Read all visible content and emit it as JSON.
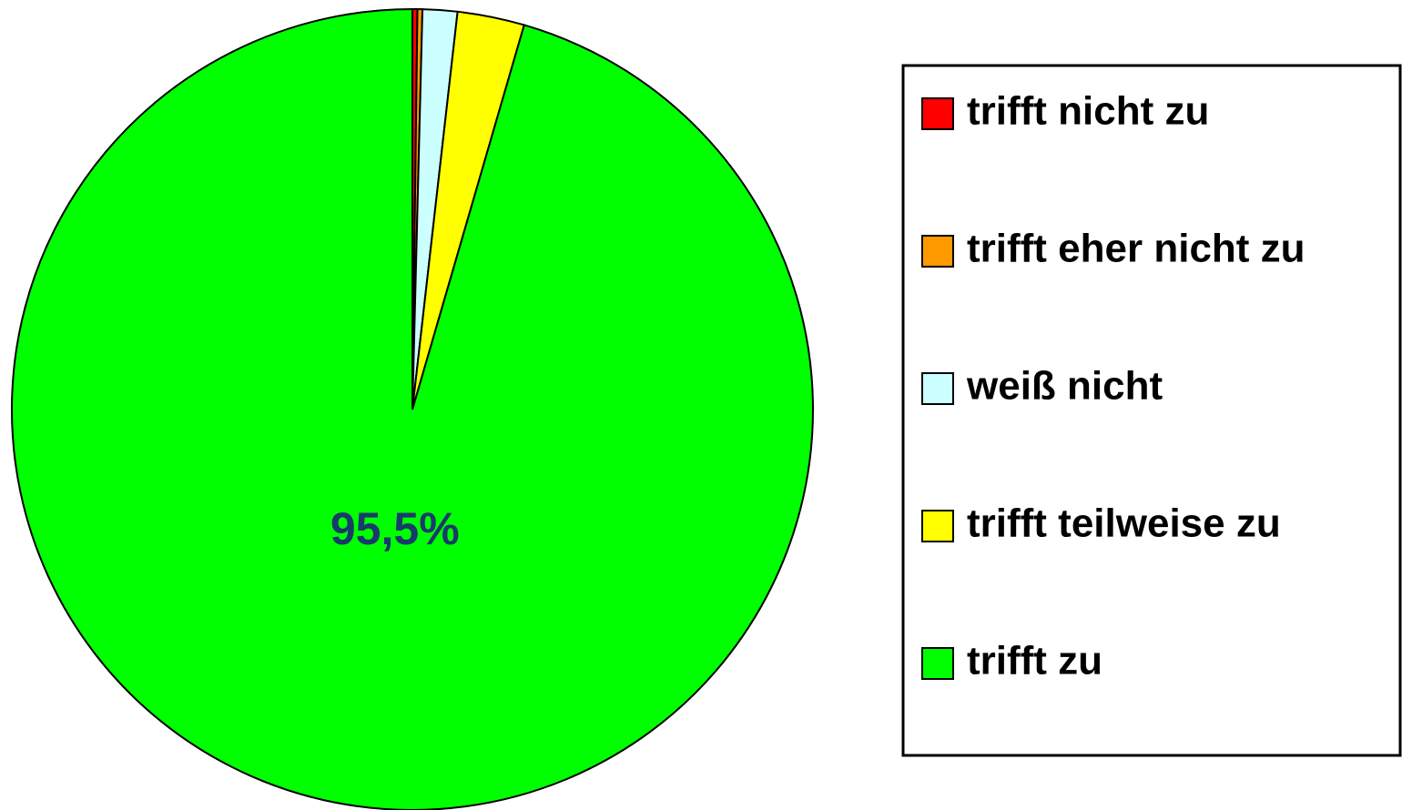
{
  "chart_data": {
    "type": "pie",
    "categories": [
      "trifft nicht zu",
      "trifft eher nicht zu",
      "weiß nicht",
      "trifft teilweise zu",
      "trifft zu"
    ],
    "values": [
      0.2,
      0.2,
      1.4,
      2.7,
      95.5
    ],
    "value_labels": [
      null,
      null,
      null,
      null,
      "95,5%"
    ],
    "colors": [
      "#ff0000",
      "#ff9900",
      "#ccffff",
      "#ffff00",
      "#00ff00"
    ],
    "legend": "right"
  }
}
